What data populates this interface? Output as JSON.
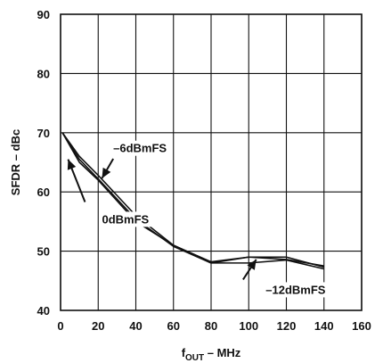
{
  "chart_data": {
    "type": "line",
    "xlabel_main": "f",
    "xlabel_sub": "OUT",
    "xlabel_rest": " – MHz",
    "ylabel": "SFDR – dBc",
    "xlim": [
      0,
      160
    ],
    "ylim": [
      40,
      90
    ],
    "x_ticks": [
      "0",
      "20",
      "40",
      "60",
      "80",
      "100",
      "120",
      "140",
      "160"
    ],
    "y_ticks": [
      "40",
      "50",
      "60",
      "70",
      "80",
      "90"
    ],
    "grid": true,
    "line_color": "#111111",
    "series": [
      {
        "name": "0dBmFS",
        "x": [
          1,
          10,
          20,
          40,
          60,
          80,
          100,
          120,
          140
        ],
        "y": [
          70,
          65,
          62,
          55,
          51,
          48,
          49,
          49,
          47.3
        ]
      },
      {
        "name": "–6dBmFS",
        "x": [
          1,
          10,
          20,
          40,
          60,
          80,
          100,
          120,
          140
        ],
        "y": [
          70,
          66,
          62.8,
          56,
          51,
          48.2,
          49,
          48.6,
          47.5
        ]
      },
      {
        "name": "–12dBmFS",
        "x": [
          1,
          10,
          20,
          40,
          60,
          80,
          100,
          120,
          140
        ],
        "y": [
          70,
          65.5,
          62.2,
          55.4,
          50.8,
          48,
          48,
          48.5,
          47
        ]
      }
    ],
    "annotations": [
      {
        "text": "–6dBmFS",
        "text_at": [
          28,
          66.7
        ],
        "arrow_from": [
          28,
          65.6
        ],
        "arrow_to": [
          22,
          62.3
        ]
      },
      {
        "text": "0dBmFS",
        "text_at": [
          22,
          54.7
        ],
        "arrow_from": [
          13,
          58.3
        ],
        "arrow_to": [
          4,
          65.5
        ]
      },
      {
        "text": "–12dBmFS",
        "text_at": [
          109,
          42.8
        ],
        "arrow_from": [
          97,
          45.2
        ],
        "arrow_to": [
          104,
          48.6
        ]
      }
    ]
  }
}
